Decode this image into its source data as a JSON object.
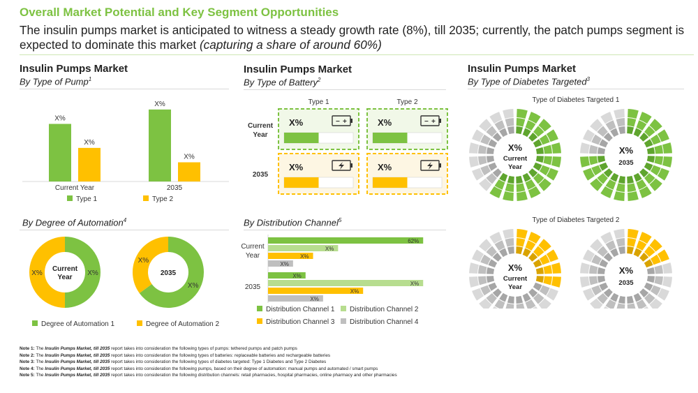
{
  "header": {
    "title": "Overall Market Potential and Key Segment Opportunities",
    "subtitle_main": "The insulin pumps market is anticipated to witness a steady growth rate (8%), till 2035; currently, the patch pumps segment is expected to dominate this market",
    "subtitle_paren": "(capturing a share of around 60%)"
  },
  "colors": {
    "green": "#7dc242",
    "yellow": "#ffc000",
    "light_green": "#b7dd8f",
    "gray": "#bfbfbf",
    "dark_gray": "#a6a6a6",
    "dark_yellow": "#d9a300"
  },
  "sections": {
    "pump": {
      "title": "Insulin Pumps Market",
      "subtitle": "By Type of Pump",
      "note_ref": "1"
    },
    "battery": {
      "title": "Insulin Pumps Market",
      "subtitle": "By Type of Battery",
      "note_ref": "2"
    },
    "diabetes": {
      "title": "Insulin Pumps Market",
      "subtitle": "By Type of Diabetes Targeted",
      "note_ref": "3"
    },
    "automation": {
      "subtitle": "By Degree of Automation",
      "note_ref": "4"
    },
    "distribution": {
      "subtitle": "By Distribution Channel",
      "note_ref": "5"
    }
  },
  "chart_data": [
    {
      "id": "pump",
      "type": "bar",
      "categories": [
        "Current Year",
        "2035"
      ],
      "series": [
        {
          "name": "Type 1",
          "color": "#7dc242",
          "values": [
            60,
            75
          ],
          "labels": [
            "X%",
            "X%"
          ]
        },
        {
          "name": "Type 2",
          "color": "#ffc000",
          "values": [
            35,
            20
          ],
          "labels": [
            "X%",
            "X%"
          ]
        }
      ],
      "ylim": [
        0,
        80
      ]
    },
    {
      "id": "battery",
      "type": "table",
      "columns": [
        "Type 1",
        "Type 2"
      ],
      "rows": [
        {
          "name": "Current Year",
          "color": "#7dc242",
          "cells": [
            {
              "label": "X%",
              "fill": 0.5
            },
            {
              "label": "X%",
              "fill": 0.5
            }
          ]
        },
        {
          "name": "2035",
          "color": "#ffc000",
          "cells": [
            {
              "label": "X%",
              "fill": 0.5
            },
            {
              "label": "X%",
              "fill": 0.5
            }
          ]
        }
      ]
    },
    {
      "id": "automation",
      "type": "pie",
      "charts": [
        {
          "center": "Current Year",
          "slices": [
            {
              "name": "Degree of Automation 1",
              "value": 50,
              "label": "X%",
              "color": "#7dc242"
            },
            {
              "name": "Degree of Automation 2",
              "value": 50,
              "label": "X%",
              "color": "#ffc000"
            }
          ]
        },
        {
          "center": "2035",
          "slices": [
            {
              "name": "Degree of Automation 1",
              "value": 65,
              "label": "X%",
              "color": "#7dc242"
            },
            {
              "name": "Degree of Automation 2",
              "value": 35,
              "label": "X%",
              "color": "#ffc000"
            }
          ]
        }
      ],
      "legend": [
        "Degree of Automation 1",
        "Degree of Automation 2"
      ]
    },
    {
      "id": "distribution",
      "type": "bar",
      "orientation": "horizontal",
      "categories": [
        "Current Year",
        "2035"
      ],
      "series": [
        {
          "name": "Distribution Channel 1",
          "color": "#7dc242",
          "values": [
            62,
            15
          ],
          "labels": [
            "62%",
            "X%"
          ]
        },
        {
          "name": "Distribution Channel 2",
          "color": "#b7dd8f",
          "values": [
            28,
            62
          ],
          "labels": [
            "X%",
            "X%"
          ]
        },
        {
          "name": "Distribution Channel 3",
          "color": "#ffc000",
          "values": [
            18,
            38
          ],
          "labels": [
            "X%",
            "X%"
          ]
        },
        {
          "name": "Distribution Channel 4",
          "color": "#bfbfbf",
          "values": [
            10,
            22
          ],
          "labels": [
            "X%",
            "X%"
          ]
        }
      ],
      "legend": [
        "Distribution Channel 1",
        "Distribution Channel 2",
        "Distribution Channel 3",
        "Distribution Channel 4"
      ],
      "xlim": [
        0,
        65
      ]
    },
    {
      "id": "diabetes",
      "type": "pie",
      "groups": [
        {
          "name": "Type of Diabetes Targeted 1",
          "color": "#7dc242",
          "charts": [
            {
              "label": "X%",
              "center": "Current Year",
              "share": 0.6
            },
            {
              "label": "X%",
              "center": "2035",
              "share": 0.75
            }
          ]
        },
        {
          "name": "Type of Diabetes Targeted 2",
          "color": "#ffc000",
          "charts": [
            {
              "label": "X%",
              "center": "Current Year",
              "share": 0.3
            },
            {
              "label": "X%",
              "center": "2035",
              "share": 0.22
            }
          ]
        }
      ]
    }
  ],
  "notes": [
    {
      "label": "Note 1:",
      "prefix": "The",
      "report": "Insulin Pumps Market, till 2035",
      "text": "report takes into consideration the following types of pumps: tethered pumps and patch pumps"
    },
    {
      "label": "Note 2:",
      "prefix": "The",
      "report": "Insulin Pumps Market, till 2035",
      "text": "report takes into consideration the following types of batteries: replaceable batteries and rechargeable batteries"
    },
    {
      "label": "Note 3:",
      "prefix": "The",
      "report": "Insulin Pumps Market, till 2035",
      "text": "report takes into consideration the following types of diabetes targeted: Type 1 Diabetes and Type 2 Diabetes"
    },
    {
      "label": "Note 4:",
      "prefix": "The",
      "report": "Insulin Pumps Market, till 2035",
      "text": "report takes into consideration the following pumps, based on their degree of automation: manual pumps and automated / smart pumps"
    },
    {
      "label": "Note 5:",
      "prefix": "The",
      "report": "Insulin Pumps Market, till 2035",
      "text": "report takes into consideration the following distribution channels: retail pharmacies, hospital pharmacies, online pharmacy and other pharmacies"
    }
  ]
}
